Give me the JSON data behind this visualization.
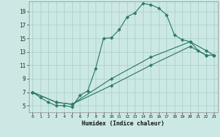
{
  "xlabel": "Humidex (Indice chaleur)",
  "background_color": "#cce8e4",
  "grid_color": "#aacfcb",
  "line_color": "#2d7a6e",
  "line1_x": [
    0,
    1,
    2,
    3,
    4,
    5,
    6,
    7,
    8,
    9,
    10,
    11,
    12,
    13,
    14,
    15,
    16,
    17,
    18,
    19,
    20,
    21,
    22,
    23
  ],
  "line1_y": [
    7.0,
    6.2,
    5.5,
    5.0,
    5.0,
    4.8,
    6.5,
    7.2,
    10.5,
    15.0,
    15.1,
    16.3,
    18.2,
    18.8,
    20.2,
    20.0,
    19.5,
    18.5,
    15.5,
    14.8,
    14.5,
    13.2,
    12.5,
    12.5
  ],
  "line2_x": [
    0,
    3,
    5,
    10,
    15,
    20,
    22,
    23
  ],
  "line2_y": [
    7.0,
    5.5,
    5.2,
    8.0,
    11.0,
    13.8,
    12.5,
    12.5
  ],
  "line3_x": [
    0,
    3,
    5,
    10,
    15,
    20,
    22,
    23
  ],
  "line3_y": [
    7.0,
    5.5,
    5.2,
    9.0,
    12.2,
    14.5,
    13.2,
    12.5
  ],
  "xlim": [
    -0.5,
    23.5
  ],
  "ylim": [
    4.0,
    20.5
  ],
  "xticks": [
    0,
    1,
    2,
    3,
    4,
    5,
    6,
    7,
    8,
    9,
    10,
    11,
    12,
    13,
    14,
    15,
    16,
    17,
    18,
    19,
    20,
    21,
    22,
    23
  ],
  "yticks": [
    5,
    7,
    9,
    11,
    13,
    15,
    17,
    19
  ]
}
